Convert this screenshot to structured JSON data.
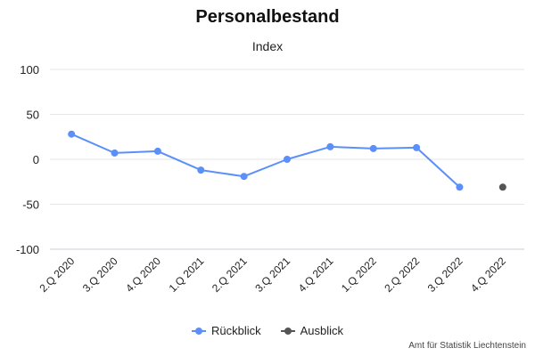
{
  "chart_data": {
    "type": "line",
    "title": "Personalbestand",
    "subtitle": "Index",
    "categories": [
      "2.Q 2020",
      "3.Q 2020",
      "4.Q 2020",
      "1.Q 2021",
      "2.Q 2021",
      "3.Q 2021",
      "4.Q 2021",
      "1.Q 2022",
      "2.Q 2022",
      "3.Q 2022",
      "4.Q 2022"
    ],
    "ylim": [
      -100,
      100
    ],
    "yticks": [
      100,
      50,
      0,
      -50,
      -100
    ],
    "grid": true,
    "legend_position": "bottom-center",
    "series": [
      {
        "name": "Rückblick",
        "color": "#5b8ff9",
        "values": [
          28,
          7,
          9,
          -12,
          -19,
          0,
          14,
          12,
          13,
          -31,
          null
        ]
      },
      {
        "name": "Ausblick",
        "color": "#555555",
        "values": [
          null,
          null,
          null,
          null,
          null,
          null,
          null,
          null,
          null,
          null,
          -31
        ]
      }
    ]
  },
  "credits": "Amt für Statistik Liechtenstein"
}
